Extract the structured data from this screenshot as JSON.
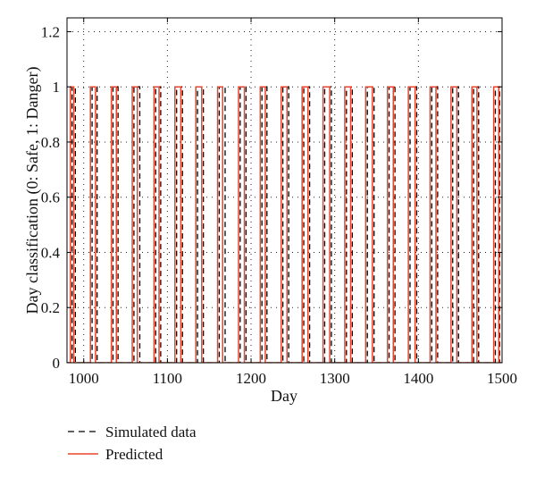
{
  "chart_data": {
    "type": "line",
    "title": "",
    "xlabel": "Day",
    "ylabel": "Day classification (0: Safe, 1: Danger)",
    "xlim": [
      980,
      1500
    ],
    "ylim": [
      0,
      1.25
    ],
    "x_ticks": [
      1000,
      1100,
      1200,
      1300,
      1400,
      1500
    ],
    "x_tick_labels": [
      "1000",
      "1100",
      "1200",
      "1300",
      "1400",
      "1500"
    ],
    "y_ticks": [
      0,
      0.2,
      0.4,
      0.6,
      0.8,
      1,
      1.2
    ],
    "y_tick_labels": [
      "0",
      "0.2",
      "0.4",
      "0.6",
      "0.8",
      "1",
      "1.2"
    ],
    "grid": "dotted",
    "legend_position": "below-left",
    "pulse_value": 1,
    "series": [
      {
        "name": "Simulated data",
        "style": "dashed",
        "color": "#000000",
        "danger_intervals": [
          [
            986,
            990
          ],
          [
            1010,
            1016
          ],
          [
            1035,
            1041
          ],
          [
            1060,
            1067
          ],
          [
            1086,
            1092
          ],
          [
            1111,
            1118
          ],
          [
            1136,
            1143
          ],
          [
            1162,
            1169
          ],
          [
            1187,
            1194
          ],
          [
            1213,
            1219
          ],
          [
            1238,
            1245
          ],
          [
            1263,
            1270
          ],
          [
            1288,
            1296
          ],
          [
            1314,
            1321
          ],
          [
            1339,
            1347
          ],
          [
            1365,
            1372
          ],
          [
            1390,
            1398
          ],
          [
            1416,
            1423
          ],
          [
            1441,
            1448
          ],
          [
            1466,
            1472
          ],
          [
            1492,
            1497
          ]
        ]
      },
      {
        "name": "Predicted",
        "style": "solid",
        "color": "#e8452c",
        "danger_intervals": [
          [
            984,
            988
          ],
          [
            1008,
            1014
          ],
          [
            1033,
            1039
          ],
          [
            1058,
            1064
          ],
          [
            1084,
            1090
          ],
          [
            1109,
            1116
          ],
          [
            1134,
            1141
          ],
          [
            1160,
            1166
          ],
          [
            1185,
            1192
          ],
          [
            1211,
            1217
          ],
          [
            1236,
            1243
          ],
          [
            1261,
            1268
          ],
          [
            1286,
            1294
          ],
          [
            1312,
            1319
          ],
          [
            1337,
            1345
          ],
          [
            1363,
            1370
          ],
          [
            1388,
            1396
          ],
          [
            1414,
            1421
          ],
          [
            1439,
            1446
          ],
          [
            1464,
            1470
          ],
          [
            1490,
            1496
          ]
        ]
      }
    ]
  }
}
